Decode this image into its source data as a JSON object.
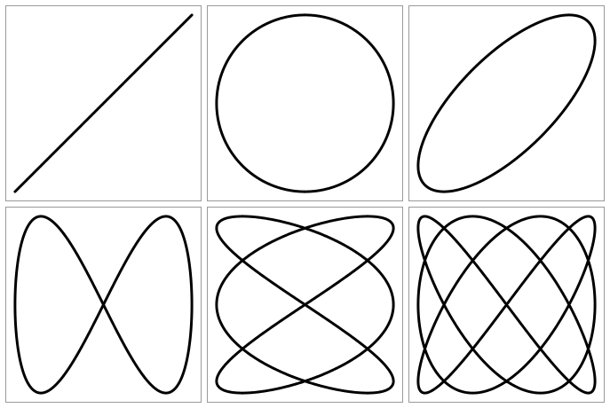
{
  "colors": {
    "background": "#ffffff",
    "panel_border": "#9a9a9a",
    "curve_stroke": "#000000"
  },
  "figure": {
    "kind": "lissajous-curves-grid",
    "rows": 2,
    "columns": 3,
    "panels": [
      {
        "id": "lissajous-1-1-phase-0",
        "a": 1,
        "b": 1,
        "phase": 0
      },
      {
        "id": "lissajous-1-1-phase-90",
        "a": 1,
        "b": 1,
        "phase": 1.5708
      },
      {
        "id": "lissajous-1-1-phase-45",
        "a": 1,
        "b": 1,
        "phase": 0.7854
      },
      {
        "id": "lissajous-1-2-figure-eight",
        "a": 1,
        "b": 2,
        "phase": 1.5708
      },
      {
        "id": "lissajous-3-2",
        "a": 3,
        "b": 2,
        "phase": 1.5708
      },
      {
        "id": "lissajous-3-4",
        "a": 3,
        "b": 4,
        "phase": 1.5708
      }
    ]
  }
}
